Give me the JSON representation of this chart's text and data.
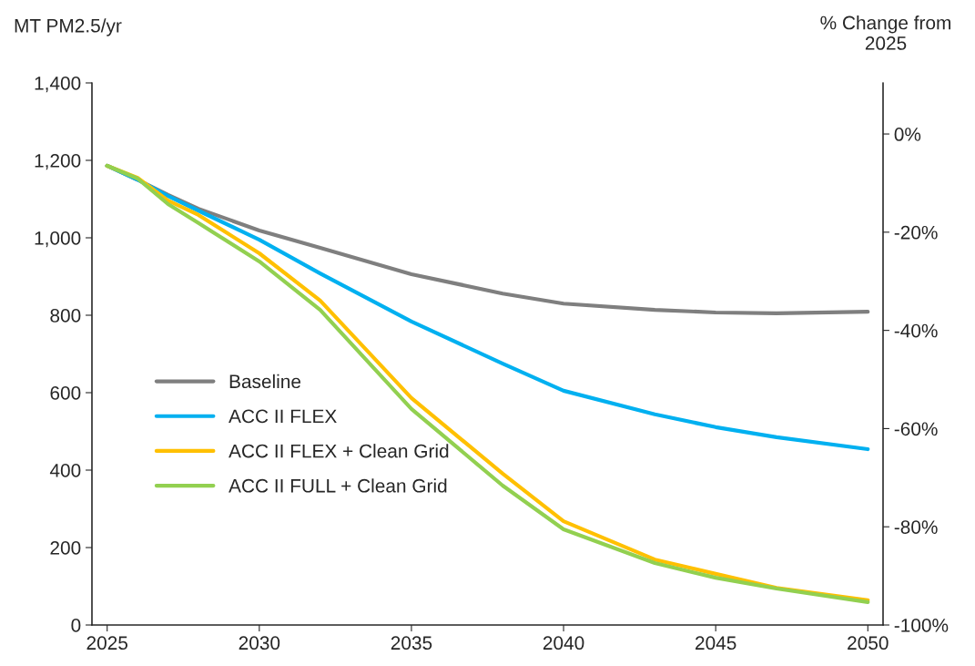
{
  "chart_data": {
    "type": "line",
    "ylabel": "MT PM2.5/yr",
    "y2label": "% Change from\n2025",
    "x": [
      2025,
      2026,
      2027,
      2028,
      2030,
      2032,
      2035,
      2038,
      2040,
      2043,
      2045,
      2047,
      2050
    ],
    "series": [
      {
        "name": "Baseline",
        "color": "#7f7f7f",
        "values": [
          1186,
          1150,
          1111,
          1075,
          1019,
          974,
          906,
          856,
          830,
          814,
          807,
          805,
          809
        ]
      },
      {
        "name": "ACC II FLEX",
        "color": "#00b0f0",
        "values": [
          1186,
          1150,
          1108,
          1070,
          995,
          908,
          784,
          675,
          605,
          544,
          511,
          485,
          454
        ]
      },
      {
        "name": "ACC II FLEX + Clean Grid",
        "color": "#ffc000",
        "values": [
          1186,
          1155,
          1096,
          1059,
          960,
          838,
          586,
          391,
          268,
          169,
          132,
          96,
          64
        ]
      },
      {
        "name": "ACC II FULL + Clean Grid",
        "color": "#92d050",
        "values": [
          1186,
          1153,
          1087,
          1038,
          939,
          814,
          558,
          360,
          247,
          160,
          122,
          94,
          59
        ]
      }
    ],
    "xlim": [
      2024.5,
      2050.5
    ],
    "xticks": [
      2025,
      2030,
      2035,
      2040,
      2045,
      2050
    ],
    "ylim": [
      0,
      1400
    ],
    "yticks": [
      0,
      200,
      400,
      {
        "value": 600,
        "label": "600"
      },
      {
        "value": 800,
        "label": "800"
      },
      {
        "value": 1000,
        "label": "1,000"
      },
      {
        "value": 1200,
        "label": "1,200"
      },
      {
        "value": 1400,
        "label": "1,400"
      }
    ],
    "y2lim": [
      -100,
      10.4
    ],
    "y2ticks": [
      {
        "value": -100,
        "label": "-100%"
      },
      {
        "value": -80,
        "label": "-80%"
      },
      {
        "value": -60,
        "label": "-60%"
      },
      {
        "value": -40,
        "label": "-40%"
      },
      {
        "value": -20,
        "label": "-20%"
      },
      {
        "value": 0,
        "label": "0%"
      }
    ],
    "grid": false,
    "legend": "left",
    "marker": "none",
    "line_style": "solid"
  }
}
